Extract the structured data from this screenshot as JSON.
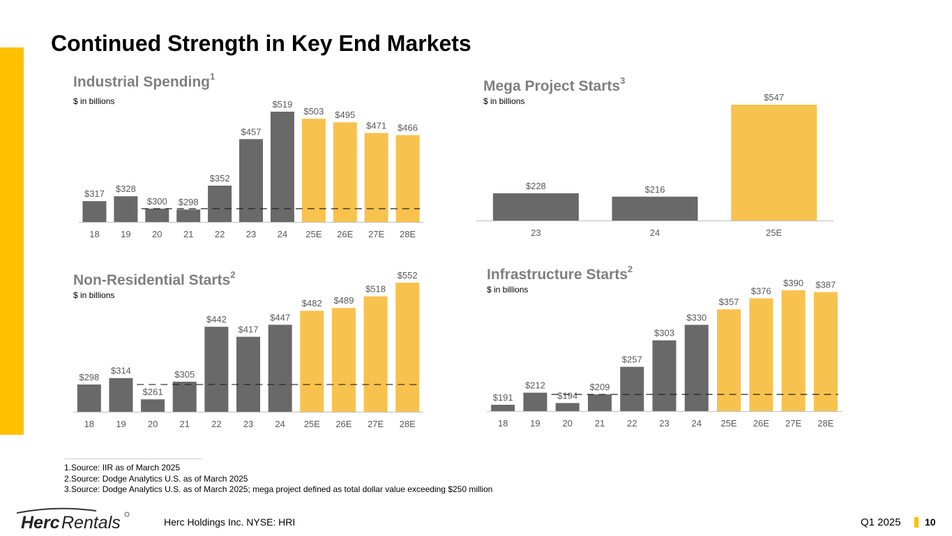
{
  "page": {
    "title": "Continued Strength in Key End Markets",
    "company": "Herc Holdings Inc.  NYSE: HRI",
    "quarter": "Q1 2025",
    "page_number": "10",
    "logo_text": "HercRentals",
    "accent_color": "#FFC000",
    "bar_dark_color": "#696969",
    "bar_estimate_color": "#F8C24E"
  },
  "footnotes": [
    "1.Source: IIR as of March 2025",
    "2.Source: Dodge Analytics U.S. as of March 2025",
    "3.Source: Dodge Analytics U.S. as of March 2025; mega project defined as total dollar value exceeding $250 million"
  ],
  "chart_data": [
    {
      "id": "industrial",
      "type": "bar",
      "title": "Industrial Spending",
      "title_sup": "1",
      "subtitle": "$ in billions",
      "categories": [
        "18",
        "19",
        "20",
        "21",
        "22",
        "23",
        "24",
        "25E",
        "26E",
        "27E",
        "28E"
      ],
      "values": [
        317,
        328,
        300,
        298,
        352,
        457,
        519,
        503,
        495,
        471,
        466
      ],
      "labels": [
        "$317",
        "$328",
        "$300",
        "$298",
        "$352",
        "$457",
        "$519",
        "$503",
        "$495",
        "$471",
        "$466"
      ],
      "estimate_from_index": 7,
      "reference_line": 300,
      "ylim": [
        270,
        519
      ],
      "grid": false
    },
    {
      "id": "mega",
      "type": "bar",
      "title": "Mega Project Starts",
      "title_sup": "3",
      "subtitle": "$ in billions",
      "categories": [
        "23",
        "24",
        "25E"
      ],
      "values": [
        228,
        216,
        547
      ],
      "labels": [
        "$228",
        "$216",
        "$547"
      ],
      "estimate_from_index": 2,
      "ylim": [
        130,
        547
      ],
      "grid": false
    },
    {
      "id": "nonres",
      "type": "bar",
      "title": "Non-Residential Starts",
      "title_sup": "2",
      "subtitle": "$ in billions",
      "categories": [
        "18",
        "19",
        "20",
        "21",
        "22",
        "23",
        "24",
        "25E",
        "26E",
        "27E",
        "28E"
      ],
      "values": [
        298,
        314,
        261,
        305,
        442,
        417,
        447,
        482,
        489,
        518,
        552
      ],
      "labels": [
        "$298",
        "$314",
        "$261",
        "$305",
        "$442",
        "$417",
        "$447",
        "$482",
        "$489",
        "$518",
        "$552"
      ],
      "estimate_from_index": 7,
      "reference_line": 298,
      "ylim": [
        230,
        552
      ],
      "grid": false
    },
    {
      "id": "infra",
      "type": "bar",
      "title": "Infrastructure Starts",
      "title_sup": "2",
      "subtitle": "$ in billions",
      "categories": [
        "18",
        "19",
        "20",
        "21",
        "22",
        "23",
        "24",
        "25E",
        "26E",
        "27E",
        "28E"
      ],
      "values": [
        191,
        212,
        194,
        209,
        257,
        303,
        330,
        357,
        376,
        390,
        387
      ],
      "labels": [
        "$191",
        "$212",
        "$194",
        "$209",
        "$257",
        "$303",
        "$330",
        "$357",
        "$376",
        "$390",
        "$387"
      ],
      "estimate_from_index": 7,
      "reference_line": 209,
      "ylim": [
        180,
        390
      ],
      "grid": false
    }
  ]
}
